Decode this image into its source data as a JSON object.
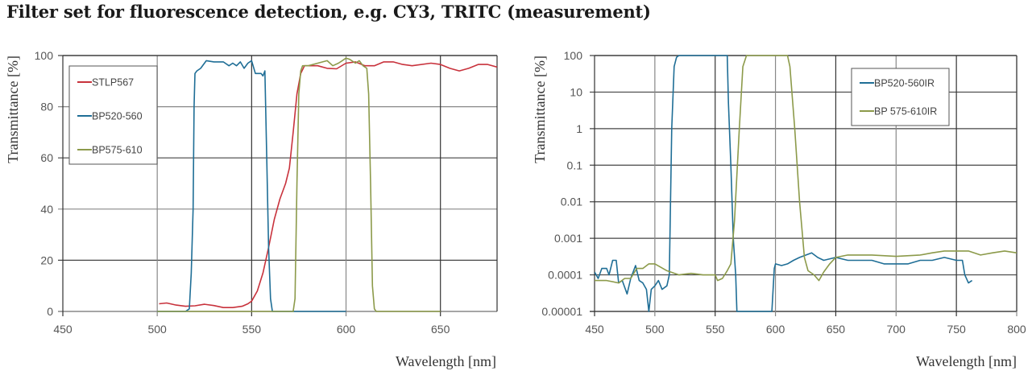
{
  "title": "Filter set for fluorescence detection, e.g. CY3, TRITC (measurement)",
  "chart_data": [
    {
      "type": "line",
      "xlabel": "Wavelength [nm]",
      "ylabel": "Transmittance [%]",
      "xlim": [
        450,
        680
      ],
      "ylim": [
        0,
        100
      ],
      "yscale": "linear",
      "xticks": [
        450,
        500,
        550,
        600,
        650
      ],
      "yticks": [
        0,
        20,
        40,
        60,
        80,
        100
      ],
      "xtick_labels": [
        "450",
        "500",
        "550",
        "600",
        "650"
      ],
      "ytick_labels": [
        "0",
        "20",
        "40",
        "60",
        "80",
        "100"
      ],
      "grid": true,
      "legend": "top-left",
      "series": [
        {
          "name": "STLP567",
          "color": "#c8323c",
          "x": [
            501,
            505,
            510,
            515,
            520,
            525,
            530,
            535,
            540,
            545,
            548,
            550,
            553,
            556,
            559,
            562,
            565,
            568,
            570,
            572,
            574,
            576,
            578,
            585,
            590,
            595,
            600,
            605,
            610,
            615,
            620,
            625,
            630,
            635,
            645,
            650,
            655,
            660,
            665,
            670,
            675,
            680
          ],
          "y": [
            3,
            3.3,
            2.5,
            2,
            2.2,
            2.8,
            2.3,
            1.5,
            1.5,
            2,
            3,
            4,
            8,
            15,
            25,
            36,
            44,
            50,
            56,
            70,
            85,
            93,
            96,
            96,
            95,
            94.8,
            97,
            97.5,
            96,
            96,
            97.5,
            97.5,
            96.5,
            96,
            97,
            96.5,
            95,
            94,
            95,
            96.5,
            96.5,
            95.5
          ]
        },
        {
          "name": "BP520-560",
          "color": "#1f6e96",
          "x": [
            500,
            515,
            517,
            518,
            519,
            519.5,
            520,
            521,
            523,
            526,
            530,
            535,
            538,
            540,
            542,
            544,
            546,
            548,
            550,
            552,
            555,
            556,
            557,
            558,
            559,
            560,
            561,
            600
          ],
          "y": [
            0,
            0,
            1,
            15,
            40,
            80,
            93,
            94,
            95,
            98,
            97.5,
            97.5,
            96,
            97,
            96,
            97.5,
            95,
            97,
            98,
            93,
            93,
            92,
            94,
            60,
            25,
            5,
            0,
            0
          ]
        },
        {
          "name": "BP575-610",
          "color": "#8c9a4a",
          "x": [
            500,
            572,
            573,
            574,
            575,
            576,
            577,
            580,
            585,
            590,
            593,
            596,
            598,
            600,
            602,
            605,
            607,
            609,
            611,
            612,
            613,
            614,
            615,
            616,
            650
          ],
          "y": [
            0,
            0,
            5,
            50,
            85,
            94,
            96,
            96,
            97,
            98,
            96,
            97,
            98,
            99,
            98.5,
            97,
            98,
            96,
            95,
            85,
            50,
            10,
            1,
            0,
            0
          ]
        }
      ]
    },
    {
      "type": "line",
      "xlabel": "Wavelength [nm]",
      "ylabel": "Transmittance [%]",
      "xlim": [
        450,
        800
      ],
      "ylim": [
        1e-05,
        100
      ],
      "yscale": "log",
      "xticks": [
        450,
        500,
        550,
        600,
        650,
        700,
        750,
        800
      ],
      "yticks": [
        1e-05,
        0.0001,
        0.001,
        0.01,
        0.1,
        1,
        10,
        100
      ],
      "xtick_labels": [
        "450",
        "500",
        "550",
        "600",
        "650",
        "700",
        "750",
        "800"
      ],
      "ytick_labels": [
        "0.00001",
        "0.0001",
        "0.001",
        "0.01",
        "0.1",
        "1",
        "10",
        "100"
      ],
      "grid": true,
      "legend": "top-right",
      "series": [
        {
          "name": "BP520-560IR",
          "color": "#1f6e96",
          "x": [
            450,
            453,
            456,
            460,
            462,
            465,
            468,
            470,
            473,
            477,
            480,
            484,
            487,
            490,
            493,
            495,
            497,
            500,
            503,
            506,
            510,
            512,
            514,
            516,
            518,
            520,
            540,
            558,
            560,
            561,
            563,
            565,
            567,
            568,
            597,
            599,
            600,
            605,
            610,
            615,
            620,
            630,
            635,
            640,
            650,
            660,
            670,
            680,
            690,
            700,
            710,
            720,
            730,
            740,
            750,
            755,
            757,
            760,
            763
          ],
          "y": [
            0.00012,
            8e-05,
            0.00015,
            0.00015,
            0.0001,
            0.00025,
            0.00025,
            6e-05,
            7e-05,
            3e-05,
            8e-05,
            0.00018,
            7e-05,
            6e-05,
            4e-05,
            1e-05,
            4e-05,
            5e-05,
            7e-05,
            4e-05,
            5e-05,
            0.0001,
            1,
            50,
            90,
            100,
            100,
            100,
            100,
            5,
            0.1,
            0.001,
            0.0001,
            1e-05,
            1e-05,
            0.00015,
            0.0002,
            0.00018,
            0.0002,
            0.00025,
            0.0003,
            0.0004,
            0.0003,
            0.00025,
            0.0003,
            0.00025,
            0.00025,
            0.00025,
            0.0002,
            0.0002,
            0.0002,
            0.00025,
            0.00025,
            0.0003,
            0.00025,
            0.00025,
            0.0001,
            6e-05,
            7e-05
          ]
        },
        {
          "name": "BP 575-610IR",
          "color": "#8c9a4a",
          "x": [
            450,
            460,
            470,
            475,
            480,
            485,
            490,
            495,
            500,
            510,
            520,
            530,
            540,
            550,
            552,
            556,
            560,
            563,
            566,
            570,
            573,
            576,
            610,
            612,
            616,
            620,
            624,
            627,
            632,
            636,
            640,
            645,
            650,
            660,
            680,
            700,
            720,
            730,
            740,
            750,
            760,
            770,
            780,
            790,
            800
          ],
          "y": [
            7e-05,
            7e-05,
            6e-05,
            8e-05,
            8e-05,
            0.00015,
            0.00015,
            0.0002,
            0.0002,
            0.00013,
            0.0001,
            0.00011,
            0.0001,
            0.0001,
            7e-05,
            8e-05,
            0.00013,
            0.0002,
            0.003,
            1,
            50,
            100,
            100,
            50,
            1,
            0.01,
            0.0003,
            0.00013,
            0.0001,
            7e-05,
            0.00012,
            0.0002,
            0.0003,
            0.00035,
            0.00035,
            0.00032,
            0.00035,
            0.0004,
            0.00045,
            0.00045,
            0.00045,
            0.00035,
            0.0004,
            0.00045,
            0.0004
          ]
        }
      ]
    }
  ]
}
